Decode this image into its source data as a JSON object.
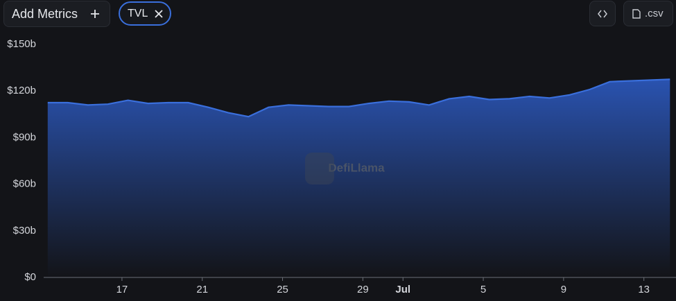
{
  "toolbar": {
    "add_metrics": "Add Metrics",
    "metric": "TVL",
    "csv": ".csv"
  },
  "chart_data": {
    "type": "area",
    "watermark": "DefiLlama",
    "color": "#3a6fdc",
    "x": [
      13.3,
      14.3,
      15.3,
      16.3,
      17.3,
      18.3,
      19.3,
      20.3,
      21.3,
      22.3,
      23.3,
      24.3,
      25.3,
      26.3,
      27.3,
      28.3,
      29.3,
      30.3,
      31.3,
      32.3,
      33.3,
      34.3,
      35.3,
      36.3,
      37.3,
      38.3,
      39.3,
      40.3,
      41.3,
      42.3,
      43.3,
      44.3
    ],
    "values": [
      112.5,
      112.5,
      111,
      111.5,
      114,
      112,
      112.5,
      112.5,
      109.5,
      106,
      103.5,
      109.5,
      111,
      110.5,
      110,
      110,
      112,
      113.5,
      113,
      111,
      115,
      116.5,
      114.5,
      115,
      116.5,
      115.5,
      117.5,
      121,
      126,
      126.5,
      127,
      127.5
    ],
    "xlim": [
      13.1,
      44.6
    ],
    "xticks": [
      17,
      21,
      25,
      29,
      {
        "value": 31,
        "label": "Jul"
      },
      {
        "value": 35,
        "label": "5"
      },
      {
        "value": 39,
        "label": "9"
      },
      {
        "value": 43,
        "label": "13"
      }
    ],
    "ylim": [
      0,
      150
    ],
    "yticks": [
      {
        "value": 0,
        "label": "$0"
      },
      {
        "value": 30,
        "label": "$30b"
      },
      {
        "value": 60,
        "label": "$60b"
      },
      {
        "value": 90,
        "label": "$90b"
      },
      {
        "value": 120,
        "label": "$120b"
      },
      {
        "value": 150,
        "label": "$150b"
      }
    ],
    "grid": false
  }
}
